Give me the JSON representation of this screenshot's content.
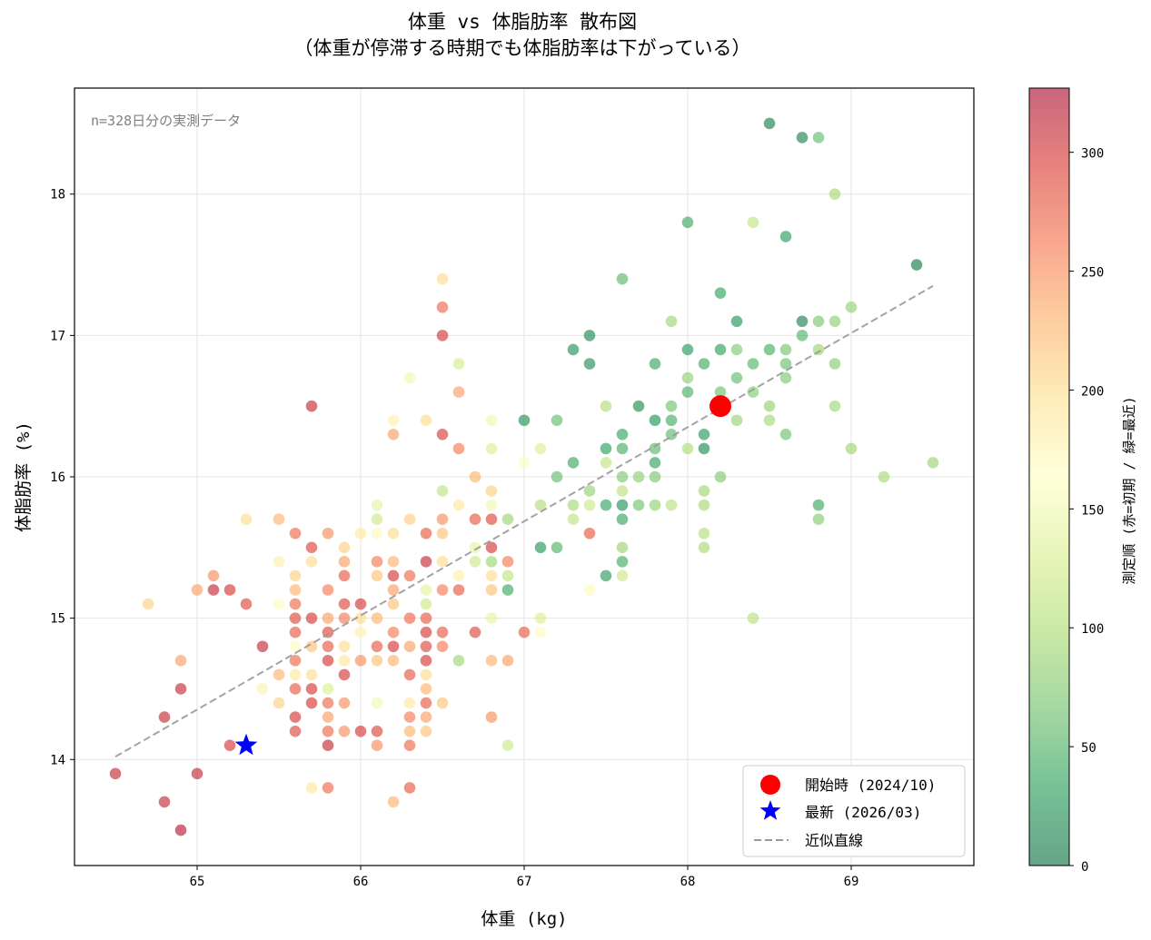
{
  "chart_data": {
    "type": "scatter",
    "title_line1": "体重 vs 体脂肪率 散布図",
    "title_line2": "（体重が停滞する時期でも体脂肪率は下がっている）",
    "xlabel": "体重 (kg)",
    "ylabel": "体脂肪率 (%)",
    "xlim": [
      64.25,
      69.75
    ],
    "ylim": [
      13.25,
      18.75
    ],
    "xticks": [
      65,
      66,
      67,
      68,
      69
    ],
    "yticks": [
      14,
      15,
      16,
      17,
      18
    ],
    "grid": true,
    "annotation": "n=328日分の実測データ",
    "colorbar": {
      "label": "測定順 (赤=初期 / 緑=最近)",
      "range": [
        0,
        327
      ],
      "ticks": [
        0,
        50,
        100,
        150,
        200,
        250,
        300
      ],
      "colormap": "RdYlGn_r"
    },
    "points": [
      [
        68.5,
        18.5,
        8
      ],
      [
        68.7,
        18.4,
        12
      ],
      [
        68.8,
        18.4,
        60
      ],
      [
        68.9,
        18.0,
        95
      ],
      [
        68.0,
        17.8,
        40
      ],
      [
        68.4,
        17.8,
        110
      ],
      [
        68.6,
        17.7,
        30
      ],
      [
        69.4,
        17.5,
        5
      ],
      [
        67.6,
        17.4,
        55
      ],
      [
        68.2,
        17.3,
        35
      ],
      [
        69.0,
        17.2,
        85
      ],
      [
        68.3,
        17.1,
        25
      ],
      [
        68.7,
        17.1,
        10
      ],
      [
        68.8,
        17.1,
        70
      ],
      [
        68.9,
        17.1,
        80
      ],
      [
        67.9,
        17.1,
        90
      ],
      [
        67.4,
        17.0,
        15
      ],
      [
        68.7,
        17.0,
        50
      ],
      [
        67.3,
        16.9,
        22
      ],
      [
        68.0,
        16.9,
        28
      ],
      [
        68.2,
        16.9,
        33
      ],
      [
        68.3,
        16.9,
        75
      ],
      [
        68.5,
        16.9,
        45
      ],
      [
        68.6,
        16.9,
        68
      ],
      [
        68.8,
        16.9,
        88
      ],
      [
        67.4,
        16.8,
        20
      ],
      [
        67.8,
        16.8,
        38
      ],
      [
        68.1,
        16.8,
        42
      ],
      [
        68.4,
        16.8,
        52
      ],
      [
        68.6,
        16.8,
        62
      ],
      [
        68.9,
        16.8,
        78
      ],
      [
        68.0,
        16.7,
        82
      ],
      [
        68.3,
        16.7,
        58
      ],
      [
        68.6,
        16.7,
        72
      ],
      [
        68.0,
        16.6,
        48
      ],
      [
        68.2,
        16.6,
        65
      ],
      [
        68.4,
        16.6,
        76
      ],
      [
        67.7,
        16.5,
        18
      ],
      [
        67.9,
        16.5,
        66
      ],
      [
        68.5,
        16.5,
        84
      ],
      [
        68.9,
        16.5,
        92
      ],
      [
        67.5,
        16.5,
        100
      ],
      [
        67.8,
        16.4,
        24
      ],
      [
        67.9,
        16.4,
        44
      ],
      [
        68.3,
        16.4,
        86
      ],
      [
        68.5,
        16.4,
        94
      ],
      [
        67.6,
        16.3,
        36
      ],
      [
        67.9,
        16.3,
        56
      ],
      [
        68.1,
        16.3,
        27
      ],
      [
        68.6,
        16.3,
        64
      ],
      [
        67.5,
        16.2,
        32
      ],
      [
        67.6,
        16.2,
        46
      ],
      [
        67.8,
        16.2,
        54
      ],
      [
        68.1,
        16.2,
        18
      ],
      [
        68.0,
        16.2,
        98
      ],
      [
        69.0,
        16.2,
        90
      ],
      [
        67.1,
        16.2,
        130
      ],
      [
        67.3,
        16.1,
        40
      ],
      [
        67.5,
        16.1,
        112
      ],
      [
        67.8,
        16.1,
        35
      ],
      [
        69.5,
        16.1,
        88
      ],
      [
        67.2,
        16.0,
        60
      ],
      [
        67.6,
        16.0,
        72
      ],
      [
        67.7,
        16.0,
        80
      ],
      [
        67.8,
        16.0,
        70
      ],
      [
        68.2,
        16.0,
        74
      ],
      [
        69.2,
        16.0,
        96
      ],
      [
        66.7,
        16.0,
        230
      ],
      [
        68.1,
        15.9,
        90
      ],
      [
        67.0,
        16.1,
        160
      ],
      [
        67.4,
        15.9,
        85
      ],
      [
        67.6,
        15.9,
        108
      ],
      [
        67.3,
        15.8,
        95
      ],
      [
        67.4,
        15.8,
        120
      ],
      [
        67.5,
        15.8,
        36
      ],
      [
        67.6,
        15.8,
        22
      ],
      [
        67.7,
        15.8,
        66
      ],
      [
        67.8,
        15.8,
        84
      ],
      [
        67.9,
        15.8,
        105
      ],
      [
        68.1,
        15.8,
        94
      ],
      [
        68.8,
        15.8,
        40
      ],
      [
        67.1,
        15.8,
        102
      ],
      [
        67.3,
        15.7,
        110
      ],
      [
        67.6,
        15.7,
        38
      ],
      [
        68.8,
        15.7,
        76
      ],
      [
        68.1,
        15.6,
        102
      ],
      [
        67.4,
        15.6,
        280
      ],
      [
        67.6,
        15.5,
        88
      ],
      [
        67.1,
        15.5,
        26
      ],
      [
        67.2,
        15.5,
        50
      ],
      [
        68.1,
        15.5,
        96
      ],
      [
        67.5,
        15.3,
        30
      ],
      [
        67.6,
        15.4,
        44
      ],
      [
        67.6,
        15.3,
        120
      ],
      [
        67.4,
        15.2,
        170
      ],
      [
        68.4,
        15.0,
        105
      ],
      [
        67.1,
        15.0,
        130
      ],
      [
        67.1,
        14.9,
        160
      ],
      [
        66.5,
        17.4,
        200
      ],
      [
        66.5,
        17.2,
        270
      ],
      [
        66.5,
        17.0,
        300
      ],
      [
        66.6,
        16.8,
        125
      ],
      [
        66.3,
        16.7,
        150
      ],
      [
        66.6,
        16.6,
        240
      ],
      [
        65.7,
        16.5,
        310
      ],
      [
        66.2,
        16.4,
        180
      ],
      [
        66.4,
        16.4,
        200
      ],
      [
        66.8,
        16.4,
        150
      ],
      [
        67.0,
        16.4,
        20
      ],
      [
        67.2,
        16.4,
        60
      ],
      [
        66.2,
        16.3,
        240
      ],
      [
        66.5,
        16.3,
        295
      ],
      [
        66.6,
        16.2,
        260
      ],
      [
        66.8,
        16.2,
        130
      ],
      [
        66.5,
        15.9,
        110
      ],
      [
        66.8,
        15.9,
        210
      ],
      [
        66.1,
        15.8,
        140
      ],
      [
        66.6,
        15.8,
        190
      ],
      [
        66.8,
        15.8,
        150
      ],
      [
        66.1,
        15.7,
        120
      ],
      [
        66.3,
        15.7,
        210
      ],
      [
        66.5,
        15.7,
        250
      ],
      [
        66.7,
        15.7,
        280
      ],
      [
        66.8,
        15.7,
        290
      ],
      [
        66.9,
        15.7,
        90
      ],
      [
        65.3,
        15.7,
        200
      ],
      [
        65.5,
        15.7,
        230
      ],
      [
        65.6,
        15.6,
        270
      ],
      [
        65.8,
        15.6,
        250
      ],
      [
        66.0,
        15.6,
        190
      ],
      [
        66.1,
        15.6,
        170
      ],
      [
        66.2,
        15.6,
        200
      ],
      [
        66.4,
        15.6,
        280
      ],
      [
        66.5,
        15.6,
        220
      ],
      [
        66.7,
        15.5,
        140
      ],
      [
        66.8,
        15.5,
        300
      ],
      [
        65.7,
        15.5,
        290
      ],
      [
        65.9,
        15.5,
        210
      ],
      [
        65.5,
        15.4,
        180
      ],
      [
        65.7,
        15.4,
        200
      ],
      [
        65.9,
        15.4,
        240
      ],
      [
        66.1,
        15.4,
        260
      ],
      [
        66.2,
        15.4,
        230
      ],
      [
        66.4,
        15.4,
        310
      ],
      [
        66.5,
        15.4,
        200
      ],
      [
        66.7,
        15.4,
        120
      ],
      [
        66.8,
        15.4,
        90
      ],
      [
        66.9,
        15.4,
        260
      ],
      [
        65.1,
        15.3,
        250
      ],
      [
        65.6,
        15.3,
        210
      ],
      [
        65.9,
        15.3,
        280
      ],
      [
        66.1,
        15.3,
        220
      ],
      [
        66.2,
        15.3,
        300
      ],
      [
        66.3,
        15.3,
        270
      ],
      [
        66.6,
        15.3,
        180
      ],
      [
        66.8,
        15.3,
        200
      ],
      [
        66.9,
        15.3,
        110
      ],
      [
        65.0,
        15.2,
        240
      ],
      [
        65.1,
        15.2,
        310
      ],
      [
        65.2,
        15.2,
        300
      ],
      [
        65.6,
        15.2,
        230
      ],
      [
        65.8,
        15.2,
        260
      ],
      [
        66.2,
        15.2,
        240
      ],
      [
        66.4,
        15.2,
        140
      ],
      [
        66.5,
        15.2,
        260
      ],
      [
        66.6,
        15.2,
        280
      ],
      [
        66.8,
        15.2,
        220
      ],
      [
        66.9,
        15.2,
        40
      ],
      [
        64.7,
        15.1,
        210
      ],
      [
        65.3,
        15.1,
        290
      ],
      [
        65.5,
        15.1,
        160
      ],
      [
        65.6,
        15.1,
        270
      ],
      [
        65.9,
        15.1,
        290
      ],
      [
        66.0,
        15.1,
        300
      ],
      [
        66.2,
        15.1,
        220
      ],
      [
        66.4,
        15.1,
        120
      ],
      [
        65.6,
        15.0,
        290
      ],
      [
        65.7,
        15.0,
        300
      ],
      [
        65.8,
        15.0,
        240
      ],
      [
        65.9,
        15.0,
        260
      ],
      [
        66.0,
        15.0,
        200
      ],
      [
        66.1,
        15.0,
        230
      ],
      [
        66.3,
        15.0,
        270
      ],
      [
        66.4,
        15.0,
        280
      ],
      [
        66.8,
        15.0,
        140
      ],
      [
        65.6,
        14.9,
        280
      ],
      [
        65.8,
        14.9,
        290
      ],
      [
        66.0,
        14.9,
        180
      ],
      [
        66.2,
        14.9,
        260
      ],
      [
        66.4,
        14.9,
        300
      ],
      [
        66.5,
        14.9,
        280
      ],
      [
        66.7,
        14.9,
        290
      ],
      [
        67.0,
        14.9,
        280
      ],
      [
        65.4,
        14.8,
        310
      ],
      [
        65.6,
        14.8,
        160
      ],
      [
        65.7,
        14.8,
        220
      ],
      [
        65.8,
        14.8,
        280
      ],
      [
        65.9,
        14.8,
        200
      ],
      [
        66.1,
        14.8,
        280
      ],
      [
        66.2,
        14.8,
        300
      ],
      [
        66.3,
        14.8,
        240
      ],
      [
        66.4,
        14.8,
        290
      ],
      [
        66.5,
        14.8,
        260
      ],
      [
        64.9,
        14.7,
        240
      ],
      [
        65.6,
        14.7,
        270
      ],
      [
        65.8,
        14.7,
        300
      ],
      [
        65.9,
        14.7,
        190
      ],
      [
        66.0,
        14.7,
        250
      ],
      [
        66.1,
        14.7,
        220
      ],
      [
        66.2,
        14.7,
        230
      ],
      [
        66.4,
        14.7,
        300
      ],
      [
        66.6,
        14.7,
        90
      ],
      [
        66.8,
        14.7,
        230
      ],
      [
        66.9,
        14.7,
        240
      ],
      [
        65.5,
        14.6,
        230
      ],
      [
        65.6,
        14.6,
        190
      ],
      [
        65.7,
        14.6,
        200
      ],
      [
        65.9,
        14.6,
        300
      ],
      [
        66.3,
        14.6,
        280
      ],
      [
        66.4,
        14.6,
        200
      ],
      [
        64.9,
        14.5,
        310
      ],
      [
        65.4,
        14.5,
        180
      ],
      [
        65.6,
        14.5,
        280
      ],
      [
        65.7,
        14.5,
        300
      ],
      [
        65.8,
        14.5,
        130
      ],
      [
        66.4,
        14.5,
        230
      ],
      [
        65.5,
        14.4,
        210
      ],
      [
        65.7,
        14.4,
        300
      ],
      [
        65.8,
        14.4,
        270
      ],
      [
        65.9,
        14.4,
        250
      ],
      [
        66.1,
        14.4,
        150
      ],
      [
        66.3,
        14.4,
        190
      ],
      [
        66.4,
        14.4,
        280
      ],
      [
        66.5,
        14.4,
        220
      ],
      [
        64.8,
        14.3,
        310
      ],
      [
        65.6,
        14.3,
        300
      ],
      [
        65.8,
        14.3,
        240
      ],
      [
        66.3,
        14.3,
        260
      ],
      [
        66.4,
        14.3,
        240
      ],
      [
        66.8,
        14.3,
        250
      ],
      [
        65.6,
        14.2,
        290
      ],
      [
        65.8,
        14.2,
        270
      ],
      [
        65.9,
        14.2,
        250
      ],
      [
        66.0,
        14.2,
        300
      ],
      [
        66.1,
        14.2,
        290
      ],
      [
        66.3,
        14.2,
        230
      ],
      [
        66.4,
        14.2,
        220
      ],
      [
        65.2,
        14.1,
        300
      ],
      [
        65.8,
        14.1,
        310
      ],
      [
        66.1,
        14.1,
        250
      ],
      [
        66.3,
        14.1,
        270
      ],
      [
        66.9,
        14.1,
        120
      ],
      [
        64.5,
        13.9,
        310
      ],
      [
        65.0,
        13.9,
        310
      ],
      [
        65.7,
        13.8,
        190
      ],
      [
        65.8,
        13.8,
        270
      ],
      [
        66.3,
        13.8,
        280
      ],
      [
        64.8,
        13.7,
        310
      ],
      [
        66.2,
        13.7,
        230
      ],
      [
        64.9,
        13.5,
        320
      ]
    ],
    "start_point": {
      "x": 68.2,
      "y": 16.5
    },
    "latest_point": {
      "x": 65.3,
      "y": 14.1
    },
    "fit_line": {
      "x": [
        64.5,
        69.5
      ],
      "y": [
        14.02,
        17.35
      ]
    },
    "legend": {
      "placement": "lower-right",
      "entries": [
        {
          "label": "開始時 (2024/10)",
          "color": "#ff0000"
        },
        {
          "label": "最新 (2026/03)",
          "color": "#0000ff"
        },
        {
          "label": "近似直線",
          "color": "#999999"
        }
      ]
    }
  }
}
